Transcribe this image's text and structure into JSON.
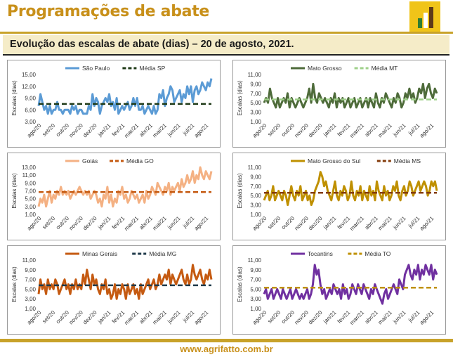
{
  "header": {
    "title": "Programações de abate"
  },
  "subtitle": "Evolução das escalas de abate (dias) – 20 de agosto, 2021.",
  "footer": {
    "url": "www.agrifatto.com.br"
  },
  "colors": {
    "brand": "#c8901a",
    "band": "#f5ecc8",
    "logo_bg": "#f0c419"
  },
  "chart_data": [
    {
      "type": "line",
      "ylabel": "Escalas (dias)",
      "yticks": [
        "3,00",
        "6,00",
        "9,00",
        "12,00",
        "15,00"
      ],
      "ylim": [
        3,
        15
      ],
      "xticks": [
        "ago/20",
        "set/20",
        "out/20",
        "nov/20",
        "dez/20",
        "jan/21",
        "fev/21",
        "mar/21",
        "abr/21",
        "mai/21",
        "jun/21",
        "jul/21",
        "ago/21"
      ],
      "legend": "top",
      "grid": false,
      "series": [
        {
          "name": "São Paulo",
          "color": "#5b9bd5",
          "style": "solid",
          "values": [
            7,
            10,
            8,
            6,
            7,
            5,
            7,
            5,
            6,
            6,
            8,
            6,
            6,
            5,
            6,
            6,
            6,
            5,
            7,
            6,
            7,
            5,
            6,
            6,
            5,
            5,
            5,
            7,
            6,
            10,
            7,
            9,
            8,
            5,
            7,
            8,
            9,
            8,
            10,
            7,
            8,
            6,
            9,
            5,
            6,
            7,
            6,
            7,
            8,
            6,
            7,
            9,
            7,
            9,
            6,
            6,
            7,
            5,
            6,
            7,
            6,
            5,
            7,
            5,
            6,
            10,
            9,
            11,
            7,
            9,
            10,
            12,
            11,
            8,
            9,
            10,
            11,
            8,
            10,
            9,
            12,
            10,
            12,
            8,
            11,
            12,
            10,
            11,
            13,
            12,
            11,
            13,
            12,
            14
          ]
        },
        {
          "name": "Média SP",
          "color": "#1f3a17",
          "style": "dash",
          "values": [
            7.5,
            7.5
          ]
        }
      ]
    },
    {
      "type": "line",
      "ylabel": "Escalas (dias)",
      "yticks": [
        "1,00",
        "3,00",
        "5,00",
        "7,00",
        "9,00",
        "11,00"
      ],
      "ylim": [
        1,
        11
      ],
      "xticks": [
        "ago/20",
        "set/20",
        "out/20",
        "nov/20",
        "dez/20",
        "jan/21",
        "fev/21",
        "mar/21",
        "abr/21",
        "mai/21",
        "jun/21",
        "jul/21",
        "ago/21"
      ],
      "legend": "top",
      "grid": false,
      "series": [
        {
          "name": "Mato Grosso",
          "color": "#4e6b3a",
          "style": "solid",
          "values": [
            5,
            6,
            5,
            8,
            6,
            5,
            4,
            6,
            4,
            5,
            6,
            5,
            7,
            4,
            6,
            5,
            4,
            5,
            6,
            5,
            4,
            5,
            6,
            8,
            5,
            9,
            6,
            5,
            7,
            6,
            5,
            6,
            5,
            4,
            6,
            5,
            7,
            4,
            6,
            5,
            6,
            4,
            5,
            6,
            4,
            5,
            6,
            4,
            5,
            6,
            4,
            5,
            6,
            4,
            6,
            5,
            4,
            7,
            5,
            4,
            6,
            5,
            7,
            6,
            5,
            4,
            6,
            5,
            7,
            6,
            4,
            5,
            7,
            6,
            8,
            6,
            7,
            5,
            6,
            8,
            7,
            9,
            6,
            8,
            9,
            7,
            6,
            8,
            7
          ]
        },
        {
          "name": "Média MT",
          "color": "#9fd08a",
          "style": "dash",
          "values": [
            5.7,
            5.7
          ]
        }
      ]
    },
    {
      "type": "line",
      "ylabel": "Escalas (dias)",
      "yticks": [
        "1,00",
        "3,00",
        "5,00",
        "7,00",
        "9,00",
        "11,00",
        "13,00"
      ],
      "ylim": [
        1,
        13
      ],
      "xticks": [
        "ago/20",
        "set/20",
        "out/20",
        "nov/20",
        "dez/20",
        "jan/21",
        "fev/21",
        "mar/21",
        "abr/21",
        "mai/21",
        "jun/21",
        "jul/21",
        "ago/21"
      ],
      "legend": "top",
      "grid": false,
      "series": [
        {
          "name": "Goiás",
          "color": "#f4b183",
          "style": "solid",
          "values": [
            3,
            5,
            4,
            6,
            3,
            5,
            7,
            4,
            6,
            5,
            7,
            6,
            8,
            6,
            7,
            6,
            7,
            5,
            6,
            7,
            6,
            7,
            8,
            7,
            6,
            7,
            6,
            7,
            5,
            6,
            7,
            6,
            4,
            5,
            3,
            6,
            5,
            8,
            4,
            6,
            3,
            5,
            4,
            7,
            6,
            8,
            5,
            6,
            4,
            5,
            7,
            6,
            5,
            6,
            4,
            5,
            6,
            4,
            7,
            5,
            6,
            8,
            7,
            6,
            9,
            8,
            7,
            6,
            8,
            7,
            9,
            6,
            8,
            7,
            8,
            9,
            7,
            10,
            8,
            9,
            11,
            9,
            10,
            12,
            9,
            11,
            10,
            13,
            11,
            10,
            12,
            11,
            10,
            12
          ]
        },
        {
          "name": "Média GO",
          "color": "#c55a11",
          "style": "dash",
          "values": [
            6.7,
            6.7
          ]
        }
      ]
    },
    {
      "type": "line",
      "ylabel": "Escalas (dias)",
      "yticks": [
        "1,00",
        "3,00",
        "5,00",
        "7,00",
        "9,00",
        "11,00"
      ],
      "ylim": [
        1,
        11
      ],
      "xticks": [
        "ago/20",
        "set/20",
        "out/20",
        "nov/20",
        "dez/20",
        "jan/21",
        "fev/21",
        "mar/21",
        "abr/21",
        "mai/21",
        "jun/21",
        "jul/21",
        "ago/21"
      ],
      "legend": "top",
      "grid": false,
      "series": [
        {
          "name": "Mato Grosso do Sul",
          "color": "#bf9000",
          "style": "solid",
          "values": [
            4,
            5,
            6,
            4,
            5,
            7,
            4,
            5,
            6,
            5,
            4,
            6,
            5,
            3,
            5,
            7,
            5,
            4,
            6,
            5,
            7,
            4,
            5,
            6,
            4,
            5,
            3,
            4,
            6,
            7,
            8,
            10,
            9,
            7,
            8,
            6,
            5,
            4,
            6,
            8,
            5,
            4,
            6,
            5,
            7,
            6,
            4,
            5,
            8,
            5,
            4,
            6,
            5,
            7,
            4,
            6,
            5,
            4,
            7,
            5,
            6,
            4,
            8,
            6,
            5,
            4,
            7,
            5,
            6,
            4,
            5,
            7,
            6,
            8,
            5,
            4,
            6,
            7,
            5,
            6,
            8,
            7,
            5,
            6,
            7,
            8,
            6,
            7,
            8,
            7,
            5,
            6,
            8,
            7,
            8,
            6
          ]
        },
        {
          "name": "Média MS",
          "color": "#843c0c",
          "style": "dash",
          "values": [
            5.6,
            5.6
          ]
        }
      ]
    },
    {
      "type": "line",
      "ylabel": "Escalas (dias)",
      "yticks": [
        "1,00",
        "3,00",
        "5,00",
        "7,00",
        "9,00",
        "11,00"
      ],
      "ylim": [
        1,
        11
      ],
      "xticks": [
        "ago/20",
        "set/20",
        "out/20",
        "nov/20",
        "dez/20",
        "jan/21",
        "fev/21",
        "mar/21",
        "abr/21",
        "mai/21",
        "jun/21",
        "jul/21",
        "ago/21"
      ],
      "legend": "top",
      "grid": false,
      "series": [
        {
          "name": "Minas Gerais",
          "color": "#c55a11",
          "style": "solid",
          "values": [
            4,
            7,
            5,
            6,
            4,
            7,
            5,
            6,
            5,
            7,
            6,
            4,
            5,
            6,
            7,
            5,
            6,
            4,
            6,
            5,
            7,
            5,
            6,
            5,
            8,
            6,
            9,
            7,
            5,
            8,
            6,
            7,
            5,
            4,
            6,
            5,
            7,
            4,
            5,
            3,
            4,
            6,
            3,
            5,
            4,
            6,
            5,
            3,
            6,
            4,
            5,
            6,
            4,
            5,
            3,
            6,
            4,
            5,
            6,
            7,
            5,
            6,
            7,
            5,
            6,
            8,
            6,
            7,
            8,
            7,
            9,
            6,
            8,
            7,
            6,
            7,
            8,
            9,
            7,
            6,
            8,
            6,
            7,
            10,
            8,
            7,
            8,
            9,
            7,
            6,
            8,
            7,
            9,
            7
          ]
        },
        {
          "name": "Média MG",
          "color": "#1f3a4a",
          "style": "dash",
          "values": [
            5.8,
            5.8
          ]
        }
      ]
    },
    {
      "type": "line",
      "ylabel": "Escalas (dias)",
      "yticks": [
        "1,00",
        "3,00",
        "5,00",
        "7,00",
        "9,00",
        "11,00"
      ],
      "ylim": [
        1,
        11
      ],
      "xticks": [
        "ago/20",
        "set/20",
        "out/20",
        "nov/20",
        "dez/20",
        "jan/21",
        "fev/21",
        "mar/21",
        "abr/21",
        "mai/21",
        "jun/21",
        "jul/21",
        "ago/21"
      ],
      "legend": "top",
      "grid": false,
      "series": [
        {
          "name": "Tocantins",
          "color": "#7030a0",
          "style": "solid",
          "values": [
            4,
            5,
            3,
            4,
            5,
            3,
            4,
            5,
            4,
            3,
            5,
            4,
            3,
            4,
            5,
            3,
            4,
            5,
            4,
            3,
            4,
            3,
            4,
            5,
            3,
            4,
            6,
            10,
            8,
            9,
            6,
            4,
            5,
            3,
            4,
            5,
            4,
            6,
            5,
            4,
            5,
            3,
            6,
            4,
            5,
            3,
            4,
            6,
            5,
            4,
            6,
            5,
            4,
            6,
            5,
            4,
            3,
            5,
            4,
            6,
            5,
            4,
            3,
            2,
            4,
            5,
            3,
            4,
            5,
            6,
            5,
            4,
            7,
            6,
            5,
            8,
            9,
            10,
            8,
            7,
            9,
            8,
            10,
            7,
            9,
            8,
            10,
            9,
            8,
            10,
            7,
            9,
            8
          ]
        },
        {
          "name": "Média TO",
          "color": "#bf9000",
          "style": "dash",
          "values": [
            5.3,
            5.3
          ]
        }
      ]
    }
  ]
}
